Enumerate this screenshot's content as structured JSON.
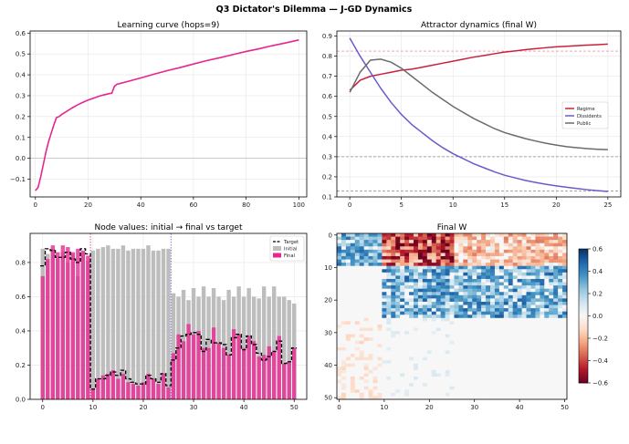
{
  "figure": {
    "title": "Q3 Dictator's Dilemma — J-GD Dynamics"
  },
  "chart_data": [
    {
      "id": "learning",
      "type": "line",
      "title": "Learning curve  (hops=9)",
      "xlabel": "",
      "ylabel": "",
      "xlim": [
        -2,
        103
      ],
      "ylim": [
        -0.185,
        0.61
      ],
      "xticks": [
        0,
        20,
        40,
        60,
        80,
        100
      ],
      "yticks": [
        -0.1,
        0.0,
        0.1,
        0.2,
        0.3,
        0.4,
        0.5,
        0.6
      ],
      "grid": true,
      "reference_line_y": 0.0,
      "color": "#e8258f",
      "series": [
        {
          "x": [
            0,
            1,
            2,
            3,
            4,
            5,
            6,
            7,
            8,
            9,
            10,
            12,
            14,
            16,
            18,
            20,
            22,
            24,
            26,
            28,
            29,
            30,
            31,
            32,
            35,
            40,
            45,
            50,
            55,
            60,
            65,
            70,
            75,
            80,
            85,
            90,
            95,
            100
          ],
          "y": [
            -0.155,
            -0.14,
            -0.09,
            -0.03,
            0.03,
            0.08,
            0.12,
            0.16,
            0.195,
            0.2,
            0.21,
            0.226,
            0.242,
            0.256,
            0.268,
            0.279,
            0.288,
            0.297,
            0.304,
            0.31,
            0.312,
            0.345,
            0.355,
            0.358,
            0.368,
            0.385,
            0.403,
            0.42,
            0.435,
            0.452,
            0.468,
            0.482,
            0.497,
            0.512,
            0.525,
            0.54,
            0.553,
            0.567
          ]
        }
      ]
    },
    {
      "id": "attractor",
      "type": "line",
      "title": "Attractor dynamics (final W)",
      "xlabel": "",
      "ylabel": "",
      "xlim": [
        -1.25,
        26.25
      ],
      "ylim": [
        0.1,
        0.925
      ],
      "xticks": [
        0,
        5,
        10,
        15,
        20,
        25
      ],
      "yticks": [
        0.1,
        0.2,
        0.3,
        0.4,
        0.5,
        0.6,
        0.7,
        0.8,
        0.9
      ],
      "grid": true,
      "legend": "center-right",
      "reference_lines": [
        {
          "y": 0.825,
          "color": "#e8708a"
        },
        {
          "y": 0.3,
          "color": "#888888"
        },
        {
          "y": 0.13,
          "color": "#888888"
        }
      ],
      "series": [
        {
          "name": "Regime",
          "color": "#c8213c",
          "x": [
            0,
            1,
            2,
            3,
            4,
            5,
            6,
            7,
            8,
            9,
            10,
            11,
            12,
            13,
            14,
            15,
            16,
            17,
            18,
            19,
            20,
            21,
            22,
            23,
            24,
            25
          ],
          "y": [
            0.63,
            0.68,
            0.7,
            0.71,
            0.72,
            0.73,
            0.735,
            0.745,
            0.755,
            0.765,
            0.775,
            0.785,
            0.795,
            0.803,
            0.812,
            0.82,
            0.826,
            0.832,
            0.837,
            0.842,
            0.846,
            0.849,
            0.852,
            0.855,
            0.857,
            0.86
          ]
        },
        {
          "name": "Dissidents",
          "color": "#6a5acd",
          "x": [
            0,
            1,
            2,
            3,
            4,
            5,
            6,
            7,
            8,
            9,
            10,
            11,
            12,
            13,
            14,
            15,
            16,
            17,
            18,
            19,
            20,
            21,
            22,
            23,
            24,
            25
          ],
          "y": [
            0.89,
            0.8,
            0.72,
            0.64,
            0.57,
            0.51,
            0.46,
            0.42,
            0.38,
            0.345,
            0.315,
            0.29,
            0.265,
            0.245,
            0.225,
            0.208,
            0.195,
            0.182,
            0.172,
            0.163,
            0.155,
            0.148,
            0.142,
            0.136,
            0.131,
            0.127
          ]
        },
        {
          "name": "Public",
          "color": "#6b6b6b",
          "x": [
            0,
            1,
            2,
            3,
            4,
            5,
            6,
            7,
            8,
            9,
            10,
            11,
            12,
            13,
            14,
            15,
            16,
            17,
            18,
            19,
            20,
            21,
            22,
            23,
            24,
            25
          ],
          "y": [
            0.62,
            0.72,
            0.78,
            0.785,
            0.77,
            0.74,
            0.7,
            0.66,
            0.62,
            0.585,
            0.55,
            0.52,
            0.49,
            0.465,
            0.44,
            0.42,
            0.405,
            0.39,
            0.378,
            0.367,
            0.358,
            0.35,
            0.345,
            0.34,
            0.337,
            0.335
          ]
        }
      ]
    },
    {
      "id": "nodes",
      "type": "bar",
      "title": "Node values: initial → final vs target",
      "xlabel": "",
      "ylabel": "",
      "xlim": [
        -2.5,
        52.5
      ],
      "ylim": [
        0,
        0.97
      ],
      "xticks": [
        0,
        10,
        20,
        30,
        40,
        50
      ],
      "yticks": [
        0.0,
        0.2,
        0.4,
        0.6,
        0.8
      ],
      "grid": true,
      "legend": "top-right",
      "group_boundaries": [
        {
          "x": 9.5,
          "color": "#d6336c"
        },
        {
          "x": 25.5,
          "color": "#6a5acd"
        }
      ],
      "series": [
        {
          "name": "Target",
          "type": "step",
          "color": "#000000",
          "values": [
            0.78,
            0.88,
            0.87,
            0.83,
            0.83,
            0.86,
            0.82,
            0.8,
            0.88,
            0.85,
            0.06,
            0.12,
            0.12,
            0.14,
            0.16,
            0.14,
            0.17,
            0.12,
            0.1,
            0.09,
            0.09,
            0.14,
            0.12,
            0.1,
            0.15,
            0.08,
            0.23,
            0.3,
            0.37,
            0.38,
            0.39,
            0.38,
            0.28,
            0.35,
            0.33,
            0.33,
            0.32,
            0.26,
            0.36,
            0.38,
            0.29,
            0.37,
            0.32,
            0.27,
            0.23,
            0.25,
            0.28,
            0.34,
            0.21,
            0.22,
            0.3
          ]
        },
        {
          "name": "Initial",
          "type": "bar",
          "color": "#bdbdbd",
          "values": [
            0.88,
            0.85,
            0.88,
            0.82,
            0.86,
            0.8,
            0.85,
            0.72,
            0.86,
            0.81,
            0.87,
            0.88,
            0.89,
            0.9,
            0.88,
            0.88,
            0.9,
            0.87,
            0.88,
            0.88,
            0.88,
            0.9,
            0.87,
            0.87,
            0.88,
            0.88,
            0.62,
            0.6,
            0.64,
            0.58,
            0.65,
            0.6,
            0.66,
            0.6,
            0.65,
            0.6,
            0.58,
            0.64,
            0.6,
            0.66,
            0.6,
            0.65,
            0.6,
            0.59,
            0.66,
            0.6,
            0.66,
            0.6,
            0.6,
            0.58,
            0.56
          ]
        },
        {
          "name": "Final",
          "type": "bar",
          "color": "#e8258f",
          "values": [
            0.72,
            0.82,
            0.9,
            0.86,
            0.9,
            0.89,
            0.86,
            0.88,
            0.87,
            0.84,
            0.06,
            0.12,
            0.14,
            0.15,
            0.17,
            0.12,
            0.15,
            0.1,
            0.09,
            0.08,
            0.1,
            0.15,
            0.12,
            0.09,
            0.15,
            0.07,
            0.27,
            0.38,
            0.34,
            0.44,
            0.38,
            0.4,
            0.3,
            0.3,
            0.42,
            0.33,
            0.3,
            0.26,
            0.41,
            0.38,
            0.3,
            0.37,
            0.34,
            0.25,
            0.26,
            0.31,
            0.28,
            0.37,
            0.21,
            0.22,
            0.3
          ]
        }
      ]
    },
    {
      "id": "weights",
      "type": "heatmap",
      "title": "Final W",
      "xlabel": "",
      "ylabel": "",
      "size": [
        51,
        51
      ],
      "xticks": [
        0,
        10,
        20,
        30,
        40,
        50
      ],
      "yticks": [
        0,
        10,
        20,
        30,
        40,
        50
      ],
      "colormap": "RdBu",
      "colorbar": {
        "min": -0.6,
        "max": 0.6,
        "ticks": [
          -0.6,
          -0.4,
          -0.2,
          0.0,
          0.2,
          0.4,
          0.6
        ]
      },
      "blocks": [
        {
          "rows": [
            0,
            9
          ],
          "cols": [
            0,
            9
          ],
          "trend": "positive, moderate"
        },
        {
          "rows": [
            0,
            9
          ],
          "cols": [
            10,
            25
          ],
          "trend": "strongly negative"
        },
        {
          "rows": [
            0,
            9
          ],
          "cols": [
            26,
            50
          ],
          "trend": "weakly negative"
        },
        {
          "rows": [
            10,
            25
          ],
          "cols": [
            10,
            50
          ],
          "trend": "positive"
        },
        {
          "rows": [
            26,
            50
          ],
          "cols": [
            0,
            9
          ],
          "trend": "weakly negative"
        },
        {
          "rows": [
            26,
            50
          ],
          "cols": [
            10,
            25
          ],
          "trend": "weakly positive"
        }
      ]
    }
  ]
}
